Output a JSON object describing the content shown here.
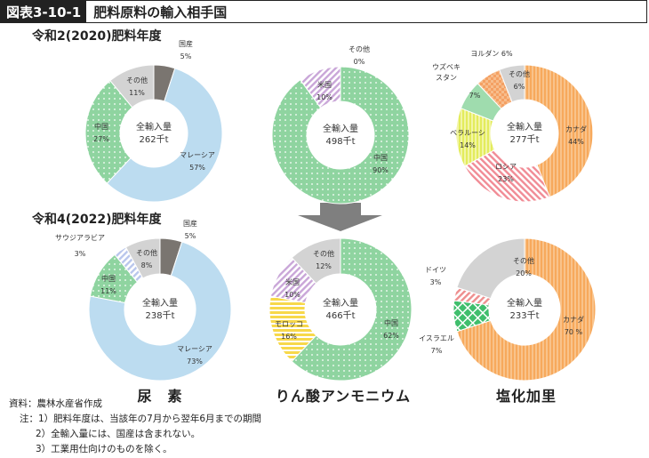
{
  "header": {
    "figure_label": "図表3-10-1",
    "title": "肥料原料の輸入相手国"
  },
  "year_labels": {
    "y2020": "令和2(2020)肥料年度",
    "y2022": "令和4(2022)肥料年度"
  },
  "captions": {
    "urea": "尿　素",
    "ammonium": "りん酸アンモニウム",
    "potash": "塩化加里"
  },
  "notes": {
    "source": "資料：農林水産省作成",
    "note1": "注：1）肥料年度は、当該年の7月から翌年6月までの期間",
    "note2": "2）全輸入量には、国産は含まれない。",
    "note3": "3）工業用仕向けのものを除く。"
  },
  "colors": {
    "malaysia": "#bcdcf0",
    "china": "#8fd4a0",
    "other": "#d3d3d3",
    "domestic": "#7a7570",
    "canada": "#f7a95c",
    "russia": "#f18b95",
    "belarus": "#e3ec5c",
    "uzbek": "#9fdcae",
    "jordan": "#f4a063",
    "morocco": "#f7d84a",
    "usa": "#c9a6d8",
    "israel": "#3fbe6c",
    "germany": "#ee8e8e",
    "saudi": "#b9c6ec"
  },
  "chart_data": [
    {
      "type": "pie",
      "id": "urea2020",
      "center_label": "全輸入量",
      "total": "262千t",
      "slices": [
        {
          "name": "国産",
          "value": 5,
          "value_label": "5%",
          "color_key": "domestic",
          "pattern": "solid"
        },
        {
          "name": "マレーシア",
          "value": 57,
          "value_label": "57%",
          "color_key": "malaysia",
          "pattern": "solid"
        },
        {
          "name": "中国",
          "value": 27,
          "value_label": "27%",
          "color_key": "china",
          "pattern": "dots"
        },
        {
          "name": "その他",
          "value": 11,
          "value_label": "11%",
          "color_key": "other",
          "pattern": "solid"
        }
      ]
    },
    {
      "type": "pie",
      "id": "amm2020",
      "center_label": "全輸入量",
      "total": "498千t",
      "slices": [
        {
          "name": "その他",
          "value": 0,
          "value_label": "0%",
          "color_key": "other",
          "pattern": "solid"
        },
        {
          "name": "中国",
          "value": 90,
          "value_label": "90%",
          "color_key": "china",
          "pattern": "dots"
        },
        {
          "name": "米国",
          "value": 10,
          "value_label": "10%",
          "color_key": "usa",
          "pattern": "diag"
        }
      ]
    },
    {
      "type": "pie",
      "id": "potash2020",
      "center_label": "全輸入量",
      "total": "277千t",
      "slices": [
        {
          "name": "カナダ",
          "value": 44,
          "value_label": "44%",
          "color_key": "canada",
          "pattern": "vstripes"
        },
        {
          "name": "ロシア",
          "value": 23,
          "value_label": "23%",
          "color_key": "russia",
          "pattern": "diag"
        },
        {
          "name": "ベラルーシ",
          "value": 14,
          "value_label": "14%",
          "color_key": "belarus",
          "pattern": "vstripes"
        },
        {
          "name": "ウズベキスタン",
          "value": 7,
          "value_label": "7%",
          "color_key": "uzbek",
          "pattern": "solid"
        },
        {
          "name": "ヨルダン",
          "value": 6,
          "value_label": "6%",
          "color_key": "jordan",
          "pattern": "checker"
        },
        {
          "name": "その他",
          "value": 6,
          "value_label": "6%",
          "color_key": "other",
          "pattern": "solid"
        }
      ]
    },
    {
      "type": "pie",
      "id": "urea2022",
      "center_label": "全輸入量",
      "total": "238千t",
      "slices": [
        {
          "name": "国産",
          "value": 5,
          "value_label": "5%",
          "color_key": "domestic",
          "pattern": "solid"
        },
        {
          "name": "マレーシア",
          "value": 73,
          "value_label": "73%",
          "color_key": "malaysia",
          "pattern": "solid"
        },
        {
          "name": "中国",
          "value": 11,
          "value_label": "11%",
          "color_key": "china",
          "pattern": "dots"
        },
        {
          "name": "サウジアラビア",
          "value": 3,
          "value_label": "3%",
          "color_key": "saudi",
          "pattern": "diag"
        },
        {
          "name": "その他",
          "value": 8,
          "value_label": "8%",
          "color_key": "other",
          "pattern": "solid"
        }
      ]
    },
    {
      "type": "pie",
      "id": "amm2022",
      "center_label": "全輸入量",
      "total": "466千t",
      "slices": [
        {
          "name": "中国",
          "value": 62,
          "value_label": "62%",
          "color_key": "china",
          "pattern": "dots"
        },
        {
          "name": "モロッコ",
          "value": 16,
          "value_label": "16%",
          "color_key": "morocco",
          "pattern": "hstripes"
        },
        {
          "name": "米国",
          "value": 10,
          "value_label": "10%",
          "color_key": "usa",
          "pattern": "diag"
        },
        {
          "name": "その他",
          "value": 12,
          "value_label": "12%",
          "color_key": "other",
          "pattern": "solid"
        }
      ]
    },
    {
      "type": "pie",
      "id": "potash2022",
      "center_label": "全輸入量",
      "total": "233千t",
      "slices": [
        {
          "name": "カナダ",
          "value": 70,
          "value_label": "70 %",
          "color_key": "canada",
          "pattern": "vstripes"
        },
        {
          "name": "イスラエル",
          "value": 7,
          "value_label": "7%",
          "color_key": "israel",
          "pattern": "cross"
        },
        {
          "name": "ドイツ",
          "value": 3,
          "value_label": "3%",
          "color_key": "germany",
          "pattern": "diag"
        },
        {
          "name": "その他",
          "value": 20,
          "value_label": "20%",
          "color_key": "other",
          "pattern": "solid"
        }
      ]
    }
  ]
}
